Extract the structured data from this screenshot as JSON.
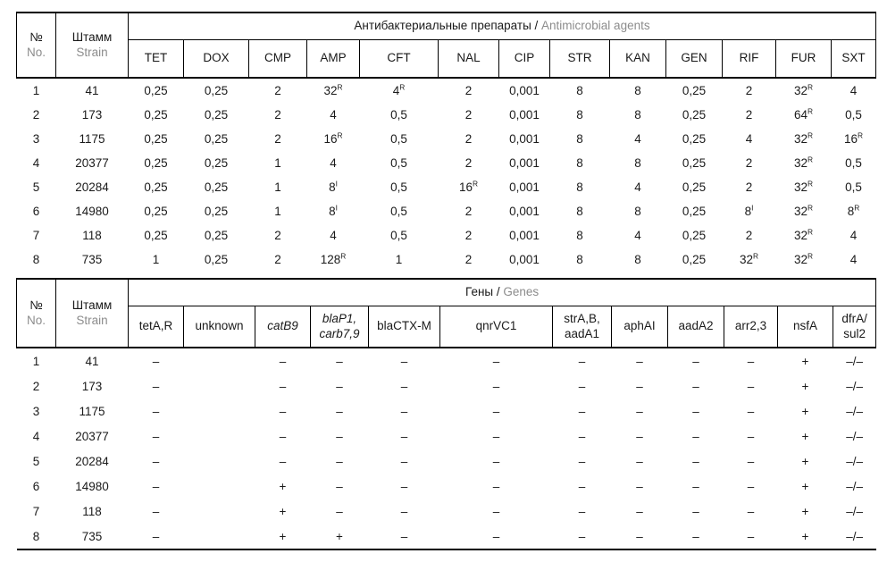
{
  "colors": {
    "text": "#1a1a1a",
    "muted_translation_text": "#8c8c8c",
    "border": "#000000",
    "background": "#ffffff"
  },
  "table1": {
    "no_ru": "№",
    "no_en": "No.",
    "strain_ru": "Штамм",
    "strain_en": "Strain",
    "group_ru": "Антибактериальные препараты / ",
    "group_en": "Antimicrobial agents",
    "columns": [
      "TET",
      "DOX",
      "CMP",
      "AMP",
      "CFT",
      "NAL",
      "CIP",
      "STR",
      "KAN",
      "GEN",
      "RIF",
      "FUR",
      "SXT"
    ],
    "rows": [
      {
        "no": "1",
        "strain": "41",
        "values": [
          "0,25",
          "0,25",
          "2",
          "32^R",
          "4^R",
          "2",
          "0,001",
          "8",
          "8",
          "0,25",
          "2",
          "32^R",
          "4"
        ]
      },
      {
        "no": "2",
        "strain": "173",
        "values": [
          "0,25",
          "0,25",
          "2",
          "4",
          "0,5",
          "2",
          "0,001",
          "8",
          "8",
          "0,25",
          "2",
          "64^R",
          "0,5"
        ]
      },
      {
        "no": "3",
        "strain": "1175",
        "values": [
          "0,25",
          "0,25",
          "2",
          "16^R",
          "0,5",
          "2",
          "0,001",
          "8",
          "4",
          "0,25",
          "4",
          "32^R",
          "16^R"
        ]
      },
      {
        "no": "4",
        "strain": "20377",
        "values": [
          "0,25",
          "0,25",
          "1",
          "4",
          "0,5",
          "2",
          "0,001",
          "8",
          "8",
          "0,25",
          "2",
          "32^R",
          "0,5"
        ]
      },
      {
        "no": "5",
        "strain": "20284",
        "values": [
          "0,25",
          "0,25",
          "1",
          "8^I",
          "0,5",
          "16^R",
          "0,001",
          "8",
          "4",
          "0,25",
          "2",
          "32^R",
          "0,5"
        ]
      },
      {
        "no": "6",
        "strain": "14980",
        "values": [
          "0,25",
          "0,25",
          "1",
          "8^I",
          "0,5",
          "2",
          "0,001",
          "8",
          "8",
          "0,25",
          "8^I",
          "32^R",
          "8^R"
        ]
      },
      {
        "no": "7",
        "strain": "118",
        "values": [
          "0,25",
          "0,25",
          "2",
          "4",
          "0,5",
          "2",
          "0,001",
          "8",
          "4",
          "0,25",
          "2",
          "32^R",
          "4"
        ]
      },
      {
        "no": "8",
        "strain": "735",
        "values": [
          "1",
          "0,25",
          "2",
          "128^R",
          "1",
          "2",
          "0,001",
          "8",
          "8",
          "0,25",
          "32^R",
          "32^R",
          "4"
        ]
      }
    ]
  },
  "table2": {
    "no_ru": "№",
    "no_en": "No.",
    "strain_ru": "Штамм",
    "strain_en": "Strain",
    "group_ru": "Гены / ",
    "group_en": "Genes",
    "columns": [
      "tetA,R",
      "unknown",
      "catB9",
      "blaP1,\ncarb7,9",
      "blaCTX-M",
      "qnrVC1",
      "strA,B,\naadA1",
      "aphAI",
      "aadA2",
      "arr2,3",
      "nsfA",
      "dfrA/\nsul2"
    ],
    "rows": [
      {
        "no": "1",
        "strain": "41",
        "values": [
          "–",
          "",
          "–",
          "–",
          "–",
          "–",
          "–",
          "–",
          "–",
          "–",
          "+",
          "–/–"
        ]
      },
      {
        "no": "2",
        "strain": "173",
        "values": [
          "–",
          "",
          "–",
          "–",
          "–",
          "–",
          "–",
          "–",
          "–",
          "–",
          "+",
          "–/–"
        ]
      },
      {
        "no": "3",
        "strain": "1175",
        "values": [
          "–",
          "",
          "–",
          "–",
          "–",
          "–",
          "–",
          "–",
          "–",
          "–",
          "+",
          "–/–"
        ]
      },
      {
        "no": "4",
        "strain": "20377",
        "values": [
          "–",
          "",
          "–",
          "–",
          "–",
          "–",
          "–",
          "–",
          "–",
          "–",
          "+",
          "–/–"
        ]
      },
      {
        "no": "5",
        "strain": "20284",
        "values": [
          "–",
          "",
          "–",
          "–",
          "–",
          "–",
          "–",
          "–",
          "–",
          "–",
          "+",
          "–/–"
        ]
      },
      {
        "no": "6",
        "strain": "14980",
        "values": [
          "–",
          "",
          "+",
          "–",
          "–",
          "–",
          "–",
          "–",
          "–",
          "–",
          "+",
          "–/–"
        ]
      },
      {
        "no": "7",
        "strain": "118",
        "values": [
          "–",
          "",
          "+",
          "–",
          "–",
          "–",
          "–",
          "–",
          "–",
          "–",
          "+",
          "–/–"
        ]
      },
      {
        "no": "8",
        "strain": "735",
        "values": [
          "–",
          "",
          "+",
          "+",
          "–",
          "–",
          "–",
          "–",
          "–",
          "–",
          "+",
          "–/–"
        ]
      }
    ]
  }
}
